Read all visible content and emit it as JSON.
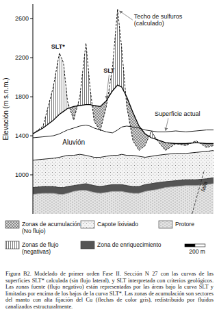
{
  "chart_data": {
    "type": "line",
    "y_label": "Elevación (m s.n.m.)",
    "x": [
      0,
      100,
      200,
      260,
      300,
      340,
      400,
      460,
      520,
      560,
      600,
      660,
      720,
      780,
      830,
      870,
      920,
      980,
      1040,
      1100,
      1160,
      1220,
      1300,
      1400,
      1500,
      1600,
      1700,
      1770
    ],
    "xlim": [
      0,
      1770
    ],
    "ylim": [
      600,
      2750
    ],
    "yticks": [
      1000,
      1400,
      1800,
      2200,
      2600
    ],
    "tick_labels": "y",
    "series": [
      {
        "name": "SLT*",
        "type": "line",
        "line_style": "dashed",
        "color": "#000000",
        "values": [
          1420,
          1500,
          1900,
          2250,
          2150,
          1750,
          1560,
          1800,
          2350,
          1900,
          1550,
          1450,
          1700,
          2100,
          2700,
          2300,
          1700,
          1350,
          1250,
          1300,
          1450,
          1350,
          1250,
          1320,
          1300,
          1350,
          1280,
          1300
        ]
      },
      {
        "name": "SLT",
        "type": "line",
        "line_style": "solid",
        "color": "#000000",
        "values": [
          1420,
          1480,
          1560,
          1620,
          1650,
          1680,
          1700,
          1710,
          1720,
          1720,
          1710,
          1700,
          1760,
          1860,
          1920,
          1900,
          1800,
          1640,
          1500,
          1420,
          1380,
          1360,
          1330,
          1320,
          1320,
          1330,
          1320,
          1320
        ]
      },
      {
        "name": "Superficie actual",
        "type": "line",
        "line_style": "solid",
        "color": "#000000",
        "values": [
          1380,
          1390,
          1400,
          1420,
          1440,
          1460,
          1480,
          1500,
          1510,
          1500,
          1480,
          1460,
          1440,
          1430,
          1460,
          1490,
          1500,
          1490,
          1480,
          1460,
          1450,
          1440,
          1440,
          1450,
          1440,
          1450,
          1460,
          1460
        ]
      },
      {
        "name": "Aluvión",
        "type": "area",
        "line_style": "solid",
        "color": "#000000",
        "values": [
          1150,
          1160,
          1170,
          1180,
          1190,
          1200,
          1200,
          1210,
          1200,
          1190,
          1180,
          1180,
          1190,
          1200,
          1200,
          1210,
          1200,
          1200,
          1190,
          1180,
          1190,
          1200,
          1210,
          1220,
          1220,
          1230,
          1240,
          1250
        ]
      },
      {
        "name": "Zona de enriquecimiento",
        "type": "area",
        "line_style": "solid",
        "color": "#555555",
        "values": [
          870,
          880,
          880,
          870,
          870,
          880,
          890,
          900,
          910,
          900,
          890,
          880,
          890,
          900,
          900,
          900,
          890,
          880,
          880,
          900,
          910,
          920,
          930,
          940,
          950,
          950,
          960,
          970
        ]
      },
      {
        "name": "Protore",
        "type": "area",
        "line_style": "solid",
        "color": "#9a9a9a",
        "values": [
          800,
          810,
          810,
          800,
          800,
          810,
          830,
          840,
          840,
          830,
          820,
          810,
          820,
          830,
          830,
          830,
          820,
          810,
          810,
          830,
          840,
          850,
          870,
          880,
          890,
          890,
          900,
          910
        ]
      }
    ],
    "legend_items": [
      "Zonas de acumulación (No flujo)",
      "Capote lixiviado",
      "Zonas de flujo (negativas)"
    ],
    "annotations": [
      "Techo de sulfuros (calculado)",
      "falla"
    ],
    "scale_bar": {
      "value": 200,
      "label": "200 m"
    },
    "caption": "Figura B2. Modelado de primer orden Fase II. Sección N 27 con las curvas de las superficies SLT* calculada (sin flujo lateral), y SLT interpretada con criterios geológicos. Las zonas fuente (flujo negativo) están representadas por las áreas bajo la curva SLT y limitadas por encima de los bajos de la curva SLT*. Las zonas de acumulación son sectores del manto con alta fijación del Cu (flechas de color gris), redistribuido por fluidos canalizados estructuralmente."
  }
}
